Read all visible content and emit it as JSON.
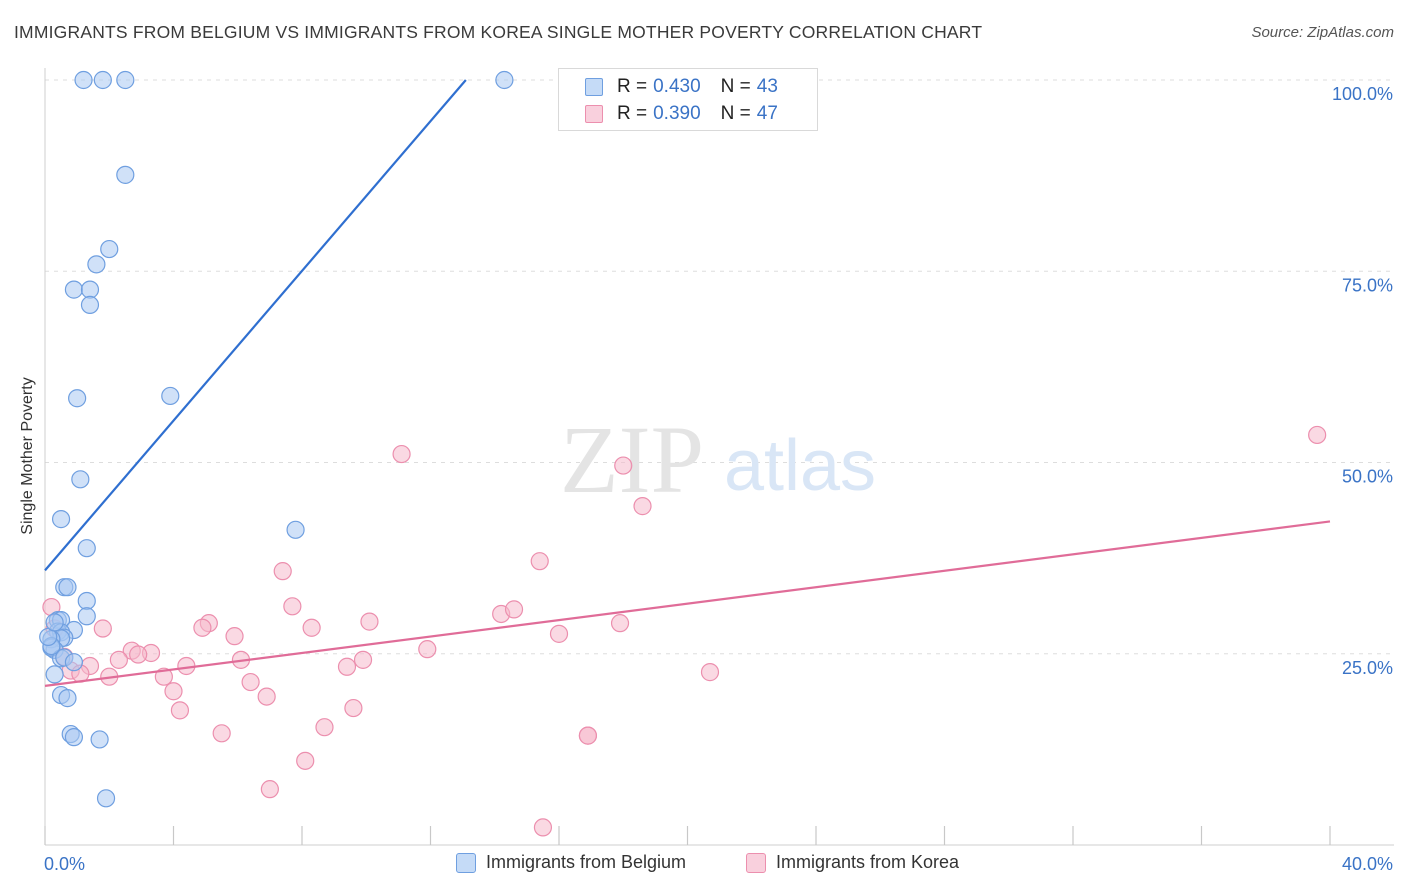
{
  "title": "IMMIGRANTS FROM BELGIUM VS IMMIGRANTS FROM KOREA SINGLE MOTHER POVERTY CORRELATION CHART",
  "source": "Source: ZipAtlas.com",
  "watermark": {
    "zip": "ZIP",
    "atlas": "atlas"
  },
  "colors": {
    "belgium_fill": "#a9c8f2",
    "belgium_stroke": "#6f9fe0",
    "belgium_line": "#2f6fd0",
    "korea_fill": "#f6b9cc",
    "korea_stroke": "#ec8fae",
    "korea_line": "#e06c98",
    "axis_label": "#3a73c6",
    "grid": "#dddddd"
  },
  "legend": {
    "r_label": "R =",
    "n_label": "N =",
    "belgium": {
      "r": "0.430",
      "n": "43"
    },
    "korea": {
      "r": "0.390",
      "n": "47"
    }
  },
  "bottom_legend": {
    "belgium": "Immigrants from Belgium",
    "korea": "Immigrants from Korea"
  },
  "chart_data": {
    "type": "scatter",
    "title": "IMMIGRANTS FROM BELGIUM VS IMMIGRANTS FROM KOREA SINGLE MOTHER POVERTY CORRELATION CHART",
    "xlabel": "",
    "ylabel": "Single Mother Poverty",
    "xlim": [
      0,
      40
    ],
    "ylim": [
      0,
      100
    ],
    "x_tick_labels": [
      "0.0%",
      "40.0%"
    ],
    "y_ticks": [
      25,
      50,
      75,
      100
    ],
    "y_tick_labels": [
      "25.0%",
      "50.0%",
      "75.0%",
      "100.0%"
    ],
    "grid": true,
    "series": [
      {
        "name": "Immigrants from Belgium",
        "r": 0.43,
        "n": 43,
        "trend": {
          "x": [
            0.0,
            13.1
          ],
          "y": [
            35.9,
            100
          ]
        },
        "points": [
          [
            1.2,
            100
          ],
          [
            1.8,
            100
          ],
          [
            2.5,
            100
          ],
          [
            14.3,
            100
          ],
          [
            2.5,
            87.6
          ],
          [
            2.0,
            77.9
          ],
          [
            1.6,
            75.9
          ],
          [
            0.9,
            72.6
          ],
          [
            1.4,
            72.6
          ],
          [
            1.4,
            70.6
          ],
          [
            1.0,
            58.4
          ],
          [
            3.9,
            58.7
          ],
          [
            1.1,
            47.8
          ],
          [
            0.5,
            42.6
          ],
          [
            7.8,
            41.2
          ],
          [
            1.3,
            38.8
          ],
          [
            0.6,
            33.7
          ],
          [
            0.7,
            33.7
          ],
          [
            1.3,
            31.9
          ],
          [
            1.3,
            29.9
          ],
          [
            0.4,
            29.4
          ],
          [
            0.5,
            29.4
          ],
          [
            0.4,
            27.9
          ],
          [
            0.9,
            28.1
          ],
          [
            0.5,
            27.8
          ],
          [
            0.6,
            27.1
          ],
          [
            0.5,
            27.0
          ],
          [
            0.2,
            26.9
          ],
          [
            0.3,
            25.5
          ],
          [
            0.2,
            25.8
          ],
          [
            0.5,
            24.4
          ],
          [
            0.6,
            24.5
          ],
          [
            0.9,
            23.9
          ],
          [
            0.3,
            22.3
          ],
          [
            0.5,
            19.6
          ],
          [
            0.7,
            19.2
          ],
          [
            0.8,
            14.5
          ],
          [
            0.9,
            14.1
          ],
          [
            1.7,
            13.8
          ],
          [
            1.9,
            6.1
          ],
          [
            0.2,
            26.0
          ],
          [
            0.1,
            27.2
          ],
          [
            0.3,
            29.1
          ]
        ]
      },
      {
        "name": "Immigrants from Korea",
        "r": 0.39,
        "n": 47,
        "trend": {
          "x": [
            0.0,
            40.0
          ],
          "y": [
            20.8,
            42.3
          ]
        },
        "points": [
          [
            39.6,
            53.6
          ],
          [
            11.1,
            51.1
          ],
          [
            18.0,
            49.6
          ],
          [
            18.6,
            44.3
          ],
          [
            15.4,
            37.1
          ],
          [
            7.4,
            35.8
          ],
          [
            7.7,
            31.2
          ],
          [
            14.2,
            30.2
          ],
          [
            14.6,
            30.8
          ],
          [
            10.1,
            29.2
          ],
          [
            17.9,
            29.0
          ],
          [
            5.1,
            29.0
          ],
          [
            8.3,
            28.4
          ],
          [
            4.9,
            28.4
          ],
          [
            0.3,
            28.3
          ],
          [
            1.8,
            28.3
          ],
          [
            0.2,
            31.1
          ],
          [
            5.9,
            27.3
          ],
          [
            16.0,
            27.6
          ],
          [
            11.9,
            25.6
          ],
          [
            2.7,
            25.4
          ],
          [
            3.3,
            25.1
          ],
          [
            2.9,
            24.9
          ],
          [
            6.1,
            24.2
          ],
          [
            9.9,
            24.2
          ],
          [
            2.3,
            24.2
          ],
          [
            9.4,
            23.3
          ],
          [
            1.4,
            23.4
          ],
          [
            4.4,
            23.4
          ],
          [
            0.8,
            22.8
          ],
          [
            20.7,
            22.6
          ],
          [
            3.7,
            22.0
          ],
          [
            1.1,
            22.4
          ],
          [
            2.0,
            22.0
          ],
          [
            6.4,
            21.3
          ],
          [
            4.0,
            20.1
          ],
          [
            6.9,
            19.4
          ],
          [
            4.2,
            17.6
          ],
          [
            9.6,
            17.9
          ],
          [
            8.7,
            15.4
          ],
          [
            5.5,
            14.6
          ],
          [
            16.9,
            14.3
          ],
          [
            16.9,
            14.3
          ],
          [
            8.1,
            11.0
          ],
          [
            7.0,
            7.3
          ],
          [
            15.5,
            2.3
          ],
          [
            0.6,
            24.6
          ]
        ]
      }
    ]
  }
}
